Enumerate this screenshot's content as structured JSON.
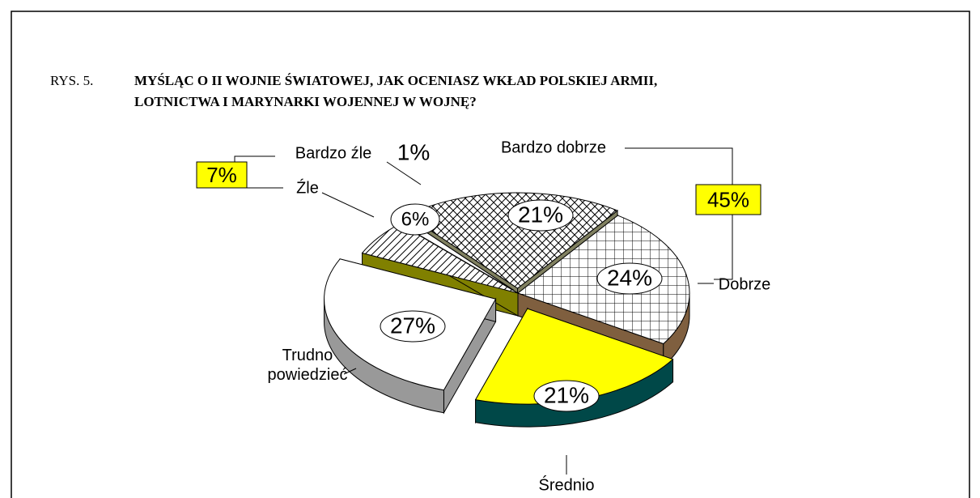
{
  "chart_data": {
    "type": "pie",
    "figure_label": "RYS. 5.",
    "title_lines": [
      "MYŚLĄC O II WOJNIE ŚWIATOWEJ, JAK OCENIASZ WKŁAD POLSKIEJ ARMII,",
      "LOTNICTWA I MARYNARKI WOJENNEJ W WOJNĘ?"
    ],
    "categories": [
      "Bardzo dobrze",
      "Dobrze",
      "Średnio",
      "Trudno powiedzieć",
      "Źle",
      "Bardzo źle"
    ],
    "values": [
      21,
      24,
      21,
      27,
      6,
      1
    ],
    "value_labels": [
      "21%",
      "24%",
      "21%",
      "27%",
      "6%",
      "1%"
    ],
    "colors": [
      "#ffffff",
      "#ffffff",
      "#ffff00",
      "#ffffff",
      "#ffffff",
      "#ffffff"
    ],
    "patterns": [
      "crosshatch",
      "grid",
      "solid",
      "solid",
      "hatch",
      "solid"
    ],
    "side_colors": [
      "#808060",
      "#7f5f3f",
      "#004848",
      "#999999",
      "#808000",
      "#00a000"
    ],
    "annotations": [
      "45%",
      "7%"
    ],
    "annotation_color": "#ffff00"
  }
}
